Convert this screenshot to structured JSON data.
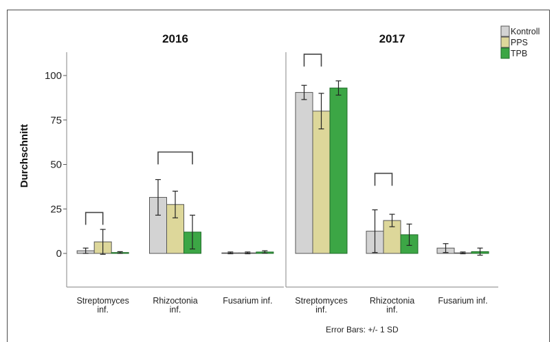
{
  "chart_data": {
    "type": "bar",
    "ylabel": "Durchschnitt",
    "ylim": [
      -18,
      115
    ],
    "yticks": [
      0,
      25,
      50,
      75,
      100
    ],
    "tick_labels": [
      "0",
      "25",
      "50",
      "75",
      "100"
    ],
    "note": "Error Bars: +/- 1 SD",
    "legend": {
      "placement": "top-right",
      "entries": [
        {
          "name": "Kontroll",
          "color": "#d3d3d3"
        },
        {
          "name": "PPS",
          "color": "#ddd79a"
        },
        {
          "name": "TPB",
          "color": "#3ca645"
        }
      ]
    },
    "panels": [
      {
        "title": "2016",
        "categories": [
          [
            "Streptomyces",
            "inf."
          ],
          [
            "Rhizoctonia",
            "inf."
          ],
          [
            "Fusarium inf."
          ]
        ],
        "series": [
          {
            "name": "Kontroll",
            "values": [
              1.5,
              31.5,
              0.3
            ],
            "sd": [
              1.5,
              10,
              0.5
            ]
          },
          {
            "name": "PPS",
            "values": [
              6.5,
              27.5,
              0.3
            ],
            "sd": [
              7,
              7.5,
              0.5
            ]
          },
          {
            "name": "TPB",
            "values": [
              0.5,
              12,
              0.8
            ],
            "sd": [
              0.5,
              9.5,
              0.7
            ]
          }
        ],
        "brackets": [
          {
            "category": 0,
            "from": 0,
            "to": 1,
            "y": 23
          },
          {
            "category": 1,
            "from": 0,
            "to": 2,
            "y": 57
          }
        ]
      },
      {
        "title": "2017",
        "categories": [
          [
            "Streptomyces",
            "inf."
          ],
          [
            "Rhizoctonia",
            "inf."
          ],
          [
            "Fusarium inf."
          ]
        ],
        "series": [
          {
            "name": "Kontroll",
            "values": [
              90.5,
              12.5,
              3
            ],
            "sd": [
              4,
              12,
              2.5
            ]
          },
          {
            "name": "PPS",
            "values": [
              80,
              18.5,
              0.3
            ],
            "sd": [
              10,
              3.5,
              0.5
            ]
          },
          {
            "name": "TPB",
            "values": [
              93,
              10.5,
              1
            ],
            "sd": [
              4,
              6,
              2
            ]
          }
        ],
        "brackets": [
          {
            "category": 0,
            "from": 0,
            "to": 1,
            "y": 112
          },
          {
            "category": 1,
            "from": 0,
            "to": 1,
            "y": 45
          }
        ]
      }
    ]
  }
}
